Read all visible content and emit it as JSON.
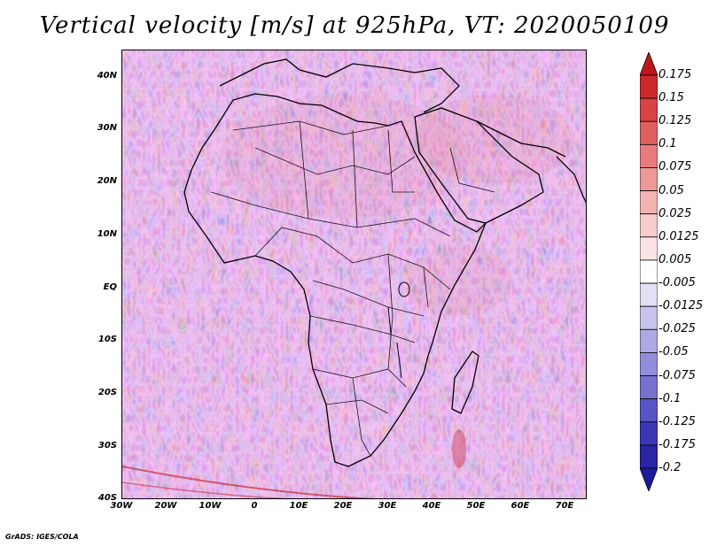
{
  "title": "Vertical velocity [m/s] at 925hPa, VT: 2020050109",
  "credit": "GrADS: IGES/COLA",
  "map": {
    "projection": "latlon",
    "lon_range": [
      -30,
      75
    ],
    "lat_range": [
      -40,
      45
    ],
    "lat_ticks": [
      {
        "lat": 40,
        "label": "40N"
      },
      {
        "lat": 30,
        "label": "30N"
      },
      {
        "lat": 20,
        "label": "20N"
      },
      {
        "lat": 10,
        "label": "10N"
      },
      {
        "lat": 0,
        "label": "EQ"
      },
      {
        "lat": -10,
        "label": "10S"
      },
      {
        "lat": -20,
        "label": "20S"
      },
      {
        "lat": -30,
        "label": "30S"
      },
      {
        "lat": -40,
        "label": "40S"
      }
    ],
    "lon_ticks": [
      {
        "lon": -30,
        "label": "30W"
      },
      {
        "lon": -20,
        "label": "20W"
      },
      {
        "lon": -10,
        "label": "10W"
      },
      {
        "lon": 0,
        "label": "0"
      },
      {
        "lon": 10,
        "label": "10E"
      },
      {
        "lon": 20,
        "label": "20E"
      },
      {
        "lon": 30,
        "label": "30E"
      },
      {
        "lon": 40,
        "label": "40E"
      },
      {
        "lon": 50,
        "label": "50E"
      },
      {
        "lon": 60,
        "label": "60E"
      },
      {
        "lon": 70,
        "label": "70E"
      }
    ]
  },
  "colorbar": {
    "top_label": "0.175",
    "top_color": "#c0151b",
    "bottom_color": "#1e1a9c",
    "levels": [
      {
        "label": "0.15",
        "color": "#cc2a2a"
      },
      {
        "label": "0.125",
        "color": "#d94343"
      },
      {
        "label": "0.1",
        "color": "#e06060"
      },
      {
        "label": "0.075",
        "color": "#e87c7c"
      },
      {
        "label": "0.05",
        "color": "#ef9898"
      },
      {
        "label": "0.025",
        "color": "#f4b3b3"
      },
      {
        "label": "0.0125",
        "color": "#f8cccc"
      },
      {
        "label": "0.005",
        "color": "#fce4e4"
      },
      {
        "label": "-0.005",
        "color": "#ffffff"
      },
      {
        "label": "-0.0125",
        "color": "#e2e0f4"
      },
      {
        "label": "-0.025",
        "color": "#c8c4ec"
      },
      {
        "label": "-0.05",
        "color": "#aea9e4"
      },
      {
        "label": "-0.075",
        "color": "#938edb"
      },
      {
        "label": "-0.1",
        "color": "#7771d0"
      },
      {
        "label": "-0.125",
        "color": "#5a54c4"
      },
      {
        "label": "-0.175",
        "color": "#3d37b5"
      },
      {
        "label": "-0.2",
        "color": "#2a24a6"
      }
    ]
  }
}
